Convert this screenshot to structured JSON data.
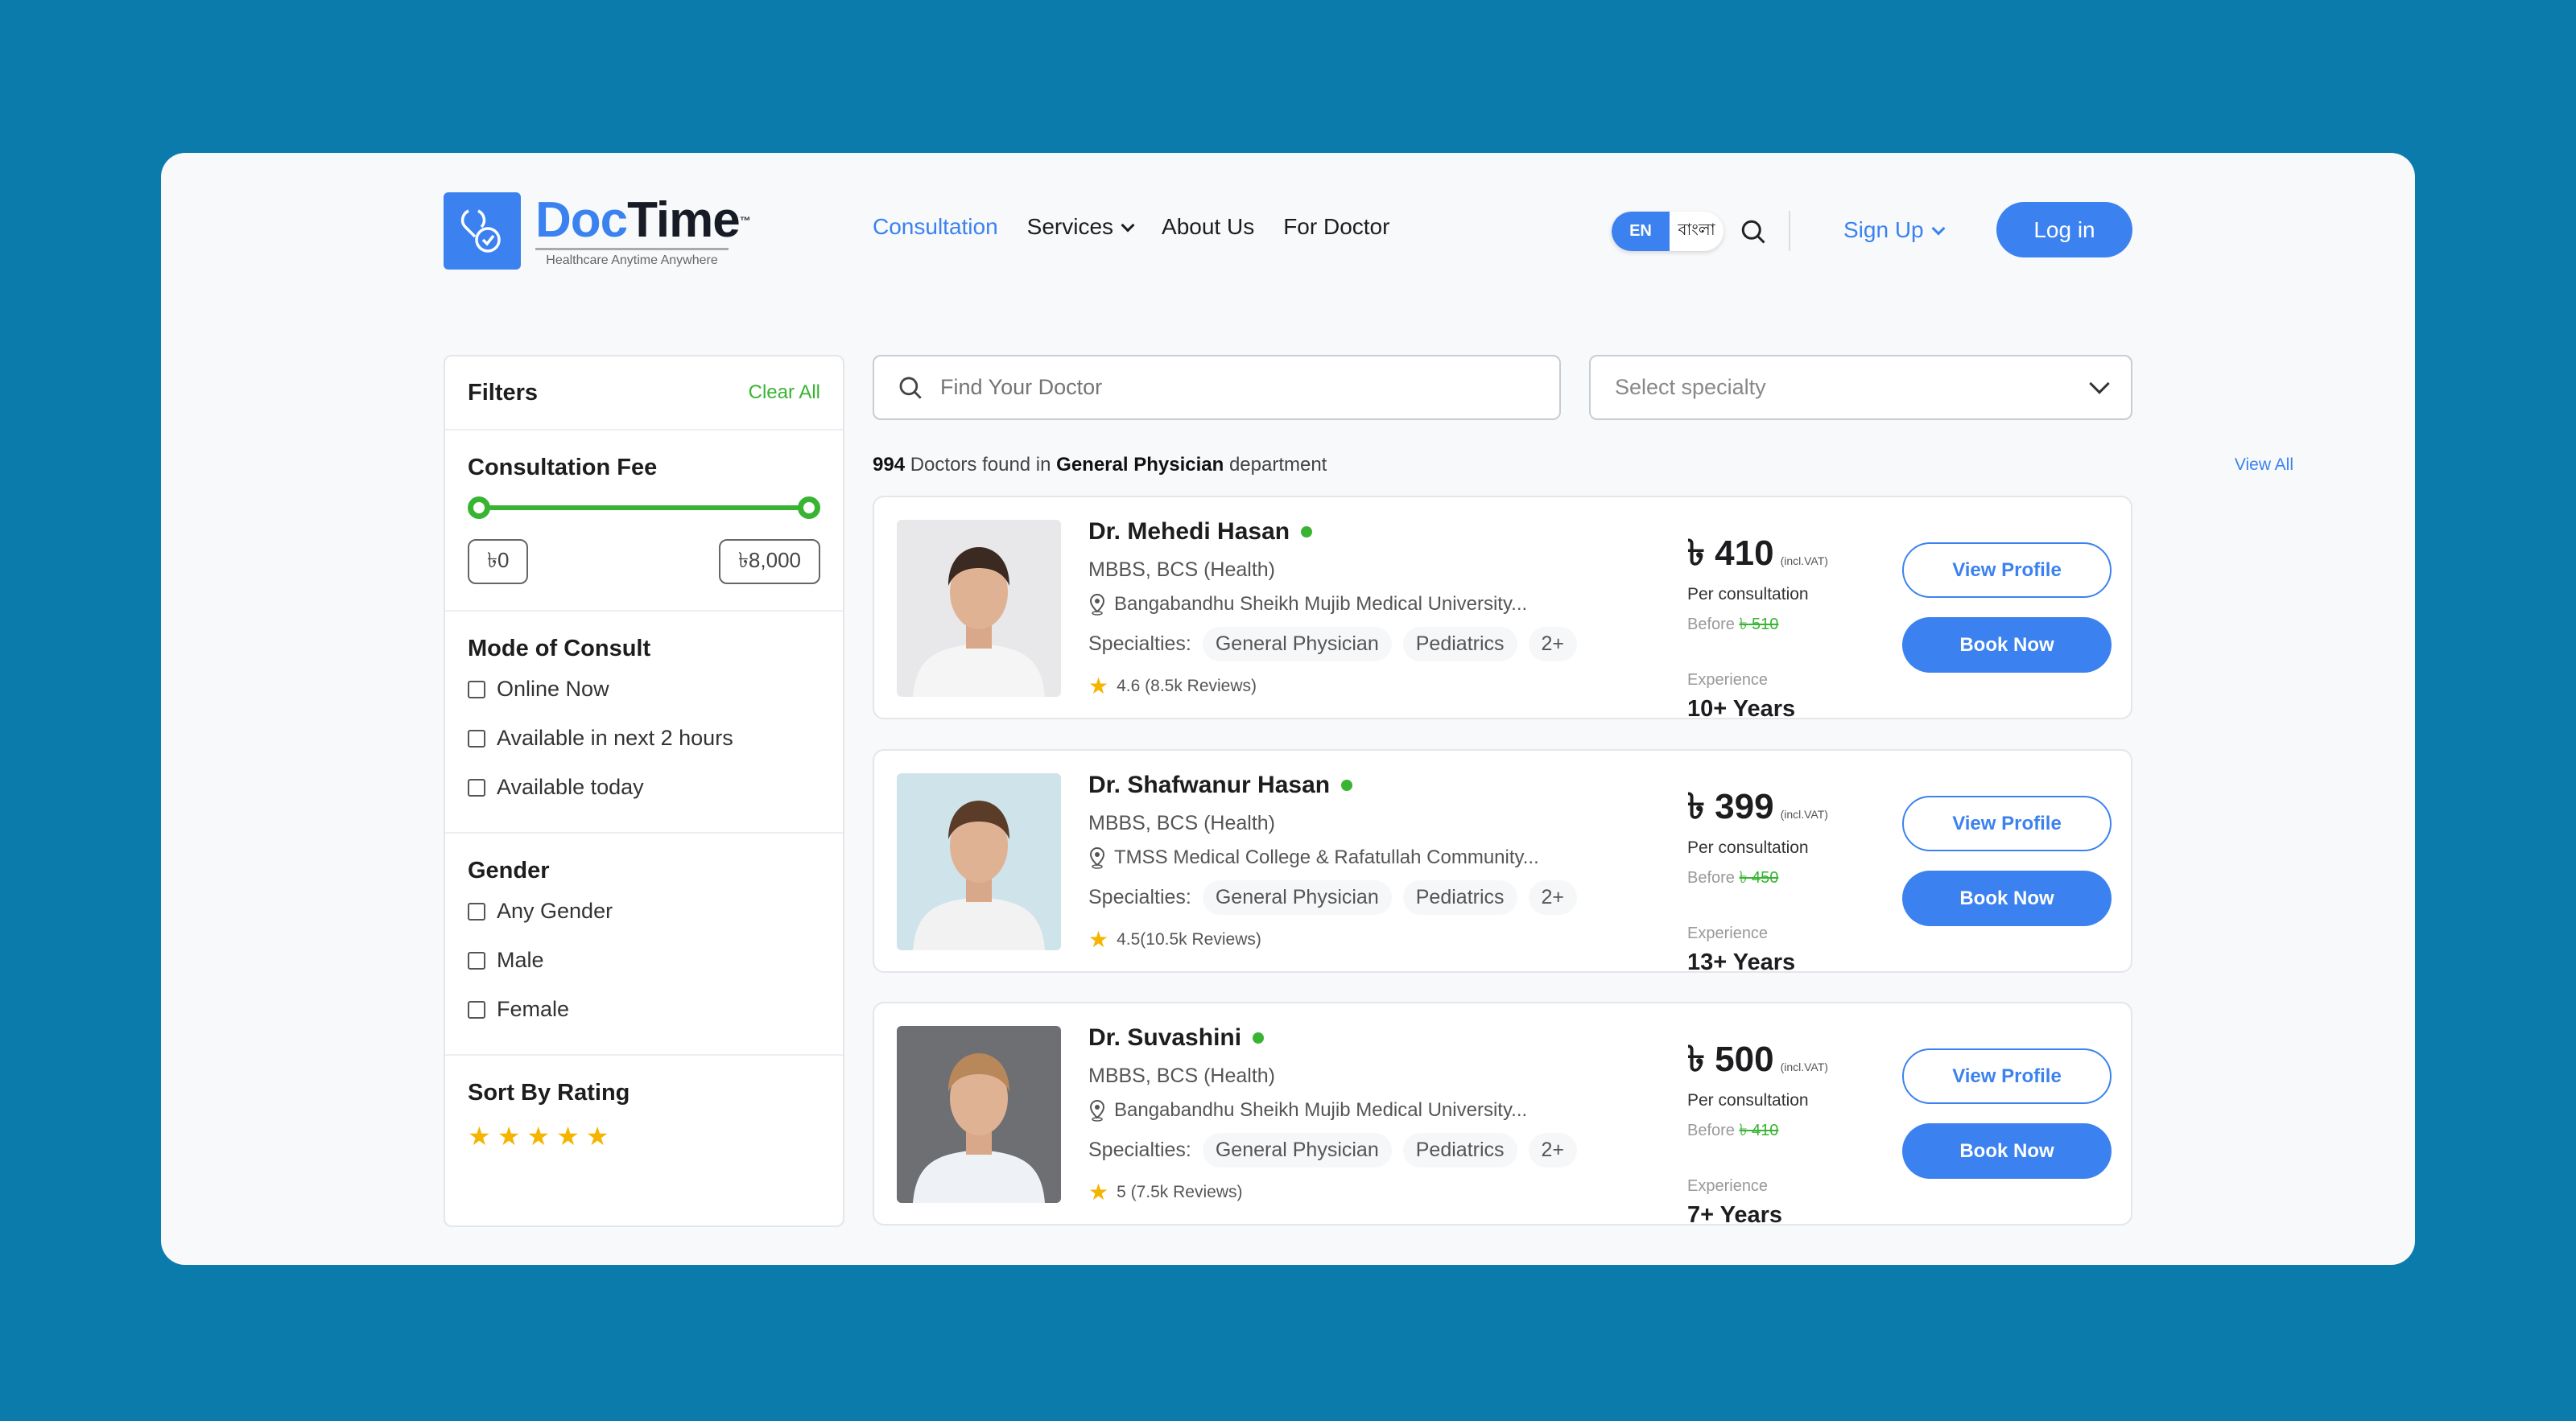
{
  "brand": {
    "name_part1": "Doc",
    "name_part2": "Time",
    "tm": "™",
    "tagline": "Healthcare Anytime Anywhere"
  },
  "nav": {
    "consultation": "Consultation",
    "services": "Services",
    "about": "About Us",
    "for_doctor": "For Doctor"
  },
  "lang": {
    "en": "EN",
    "bn": "বাংলা"
  },
  "auth": {
    "signup": "Sign Up",
    "login": "Log in"
  },
  "filters": {
    "title": "Filters",
    "clear": "Clear All",
    "fee": {
      "title": "Consultation Fee",
      "min": "৳0",
      "max": "৳8,000",
      "range_min_pct": 0,
      "range_max_pct": 100
    },
    "mode": {
      "title": "Mode of Consult",
      "options": [
        "Online Now",
        "Available in next 2 hours",
        "Available today"
      ]
    },
    "gender": {
      "title": "Gender",
      "options": [
        "Any Gender",
        "Male",
        "Female"
      ]
    },
    "rating": {
      "title": "Sort By Rating",
      "stars": 5
    }
  },
  "search": {
    "placeholder": "Find Your Doctor"
  },
  "specialty": {
    "placeholder": "Select specialty"
  },
  "results": {
    "count": "994",
    "mid": "Doctors found in",
    "dept": "General Physician",
    "tail": "department",
    "view_all": "View All"
  },
  "colors": {
    "primary": "#3B82F0",
    "green": "#38B432",
    "background": "#0B7BAB"
  },
  "doctors": [
    {
      "name": "Dr. Mehedi Hasan",
      "degree": "MBBS, BCS (Health)",
      "hospital": "Bangabandhu Sheikh Mujib Medical University...",
      "specialties_label": "Specialties:",
      "specialties": [
        "General Physician",
        "Pediatrics",
        "2+"
      ],
      "rating": "4.6 (8.5k Reviews)",
      "price": "৳ 410",
      "vat": "(incl.VAT)",
      "per": "Per consultation",
      "before_label": "Before",
      "before": "৳ 510",
      "exp_label": "Experience",
      "exp": "10+ Years",
      "view": "View Profile",
      "book": "Book Now"
    },
    {
      "name": "Dr. Shafwanur Hasan",
      "degree": "MBBS, BCS (Health)",
      "hospital": "TMSS Medical College & Rafatullah Community...",
      "specialties_label": "Specialties:",
      "specialties": [
        "General Physician",
        "Pediatrics",
        "2+"
      ],
      "rating": "4.5(10.5k Reviews)",
      "price": "৳ 399",
      "vat": "(incl.VAT)",
      "per": "Per consultation",
      "before_label": "Before",
      "before": "৳ 450",
      "exp_label": "Experience",
      "exp": "13+ Years",
      "view": "View Profile",
      "book": "Book Now"
    },
    {
      "name": "Dr. Suvashini",
      "degree": "MBBS, BCS (Health)",
      "hospital": "Bangabandhu Sheikh Mujib Medical University...",
      "specialties_label": "Specialties:",
      "specialties": [
        "General Physician",
        "Pediatrics",
        "2+"
      ],
      "rating": "5 (7.5k Reviews)",
      "price": "৳ 500",
      "vat": "(incl.VAT)",
      "per": "Per consultation",
      "before_label": "Before",
      "before": "৳ 410",
      "exp_label": "Experience",
      "exp": "7+ Years",
      "view": "View Profile",
      "book": "Book Now"
    }
  ]
}
